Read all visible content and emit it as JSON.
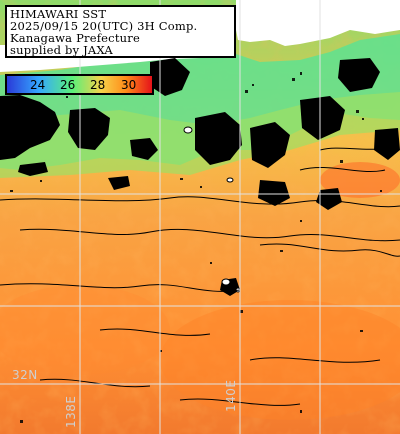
{
  "info": {
    "line1": "HIMAWARI SST",
    "line2": "2025/09/15 20(UTC) 3H Comp.",
    "line3": "Kanagawa Prefecture",
    "line4": "supplied by JAXA"
  },
  "colorbar": {
    "ticks": [
      "24",
      "26",
      "28",
      "30"
    ],
    "colors": [
      "#2a3ad8",
      "#35a8ff",
      "#5af07a",
      "#f7d24a",
      "#ff8c1a",
      "#e5121a"
    ]
  },
  "grid_labels": {
    "lat_32": "32N",
    "lon_138": "138E",
    "lon_140": "140E"
  },
  "colors": {
    "land_cloud_mask": "#000000",
    "coast": "#ffffff",
    "warm_sea": "#ff9f40",
    "cool_sea": "#4fdc84",
    "grid": "#d8d8d8"
  }
}
